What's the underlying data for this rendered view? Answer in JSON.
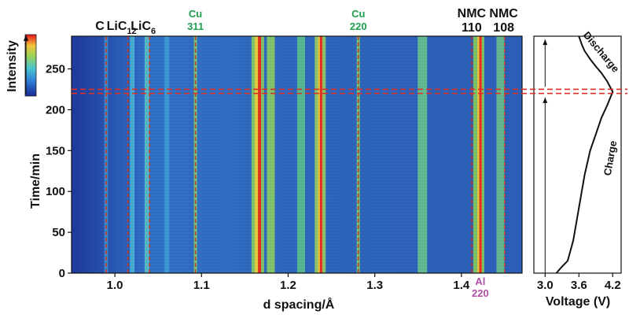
{
  "chart_data": [
    {
      "type": "heatmap",
      "xlabel": "d spacing/Å",
      "ylabel": "Time/min",
      "xlim": [
        0.95,
        1.47
      ],
      "ylim": [
        0,
        290
      ],
      "xticks": [
        "1.0",
        "1.1",
        "1.2",
        "1.3",
        "1.4"
      ],
      "yticks": [
        "0",
        "50",
        "100",
        "150",
        "200",
        "250"
      ],
      "colorbar_label": "Intensity",
      "colors": {
        "low": "#1a2a9a",
        "mid": "#3fb2d6",
        "high": "#e3141a",
        "peak_green": "#8fd35a"
      },
      "grid": false,
      "peak_labels": [
        {
          "d": 0.99,
          "lines": [
            "C"
          ],
          "color": "#111111"
        },
        {
          "d": 1.015,
          "lines": [
            "LiC",
            "12"
          ],
          "color": "#111111"
        },
        {
          "d": 1.04,
          "lines": [
            "LiC",
            "6"
          ],
          "color": "#111111"
        },
        {
          "d": 1.093,
          "lines": [
            "Cu",
            "311"
          ],
          "color": "#1e9e4e"
        },
        {
          "d": 1.281,
          "lines": [
            "Cu",
            "220"
          ],
          "color": "#1e9e4e"
        },
        {
          "d": 1.41,
          "lines": [
            "NMC",
            "110"
          ],
          "color": "#111111"
        },
        {
          "d": 1.447,
          "lines": [
            "NMC",
            "108"
          ],
          "color": "#111111"
        },
        {
          "d": 1.42,
          "lines": [
            "Al",
            "220"
          ],
          "color": "#b04fa8",
          "position": "bottom"
        }
      ],
      "reference_lines_d": [
        0.99,
        1.015,
        1.04,
        1.093,
        1.281,
        1.412,
        1.45
      ],
      "marker_times_min": [
        220,
        225
      ]
    },
    {
      "type": "line",
      "xlabel": "Voltage (V)",
      "xticks": [
        "3.0",
        "3.6",
        "4.2"
      ],
      "xlim": [
        2.8,
        4.35
      ],
      "ylim": [
        0,
        290
      ],
      "segments": [
        "Charge",
        "Discharge"
      ],
      "series": [
        {
          "x": [
            3.2,
            3.3,
            3.4,
            3.5,
            3.6,
            3.7,
            3.8,
            3.9,
            4.0,
            4.1,
            4.2,
            4.1,
            4.0,
            3.9,
            3.8,
            3.7,
            3.65,
            3.62,
            3.6
          ],
          "y": [
            0,
            8,
            15,
            40,
            80,
            120,
            150,
            170,
            190,
            205,
            222,
            235,
            245,
            253,
            262,
            272,
            280,
            286,
            290
          ]
        }
      ]
    }
  ]
}
